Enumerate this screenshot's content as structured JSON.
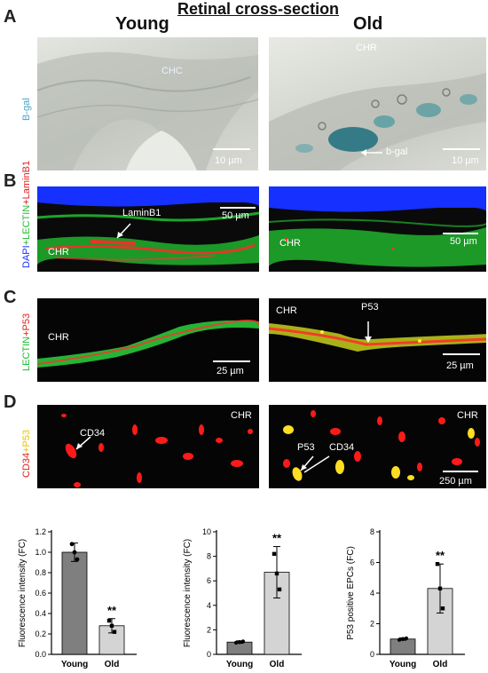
{
  "figure": {
    "title": "Retinal cross-section",
    "col_young": "Young",
    "col_old": "Old",
    "colors": {
      "blue_stain": "#0b5a6b",
      "green": "#22cc33",
      "red": "#ff2020",
      "yellow": "#ffee33",
      "dapi": "#1a2fff"
    }
  },
  "panelA": {
    "letter": "A",
    "ylabel": "B-gal",
    "young_label": "CHC",
    "old_label": "CHR",
    "arrow_label": "b-gal",
    "scale_young": "10 µm",
    "scale_old": "10 µm"
  },
  "panelB": {
    "letter": "B",
    "ylabel_dapi": "DAPI",
    "ylabel_lectin": "+LECTIN",
    "ylabel_lamin": "+LaminB1",
    "arrow_label": "LaminB1",
    "young_chr": "CHR",
    "old_chr": "CHR",
    "scale_young": "50 µm",
    "scale_old": "50 µm"
  },
  "panelC": {
    "letter": "C",
    "ylabel_lectin": "LECTIN",
    "ylabel_p53": "+P53",
    "young_chr": "CHR",
    "old_chr": "CHR",
    "arrow_label": "P53",
    "scale_young": "25 µm",
    "scale_old": "25 µm"
  },
  "panelD": {
    "letter": "D",
    "ylabel_cd34": "CD34",
    "ylabel_p53": "+P53",
    "young_chr": "CHR",
    "old_chr": "CHR",
    "young_arrow": "CD34",
    "old_arrow_p53": "P53",
    "old_arrow_cd34": "CD34",
    "scale_old": "250 µm"
  },
  "chart_data": [
    {
      "type": "bar",
      "categories": [
        "Young",
        "Old"
      ],
      "values": [
        1.0,
        0.28
      ],
      "errors": [
        0.09,
        0.07
      ],
      "points": [
        [
          1.08,
          1.0,
          0.93
        ],
        [
          0.33,
          0.28,
          0.22
        ]
      ],
      "colors": [
        "#7f7f7f",
        "#d4d4d4"
      ],
      "ylabel": "Fluorescence intensity (FC)",
      "ylim": [
        0,
        1.2
      ],
      "yticks": [
        "0.0",
        "0.2",
        "0.4",
        "0.6",
        "0.8",
        "1.0",
        "1.2"
      ],
      "significance": "**"
    },
    {
      "type": "bar",
      "categories": [
        "Young",
        "Old"
      ],
      "values": [
        1.0,
        6.7
      ],
      "errors": [
        0.1,
        2.1
      ],
      "points": [
        [
          0.95,
          1.0,
          1.05
        ],
        [
          8.2,
          6.6,
          5.3
        ]
      ],
      "colors": [
        "#7f7f7f",
        "#d4d4d4"
      ],
      "ylabel": "Fluorescence intensity (FC)",
      "ylim": [
        0,
        10
      ],
      "yticks": [
        "0",
        "2",
        "4",
        "6",
        "8",
        "10"
      ],
      "significance": "**"
    },
    {
      "type": "bar",
      "categories": [
        "Young",
        "Old"
      ],
      "values": [
        1.0,
        4.3
      ],
      "errors": [
        0.08,
        1.6
      ],
      "points": [
        [
          0.95,
          1.0,
          1.05
        ],
        [
          5.9,
          4.3,
          3.0
        ]
      ],
      "colors": [
        "#7f7f7f",
        "#d4d4d4"
      ],
      "ylabel": "P53 positive EPCs (FC)",
      "ylim": [
        0,
        8
      ],
      "yticks": [
        "0",
        "2",
        "4",
        "6",
        "8"
      ],
      "significance": "**"
    }
  ]
}
